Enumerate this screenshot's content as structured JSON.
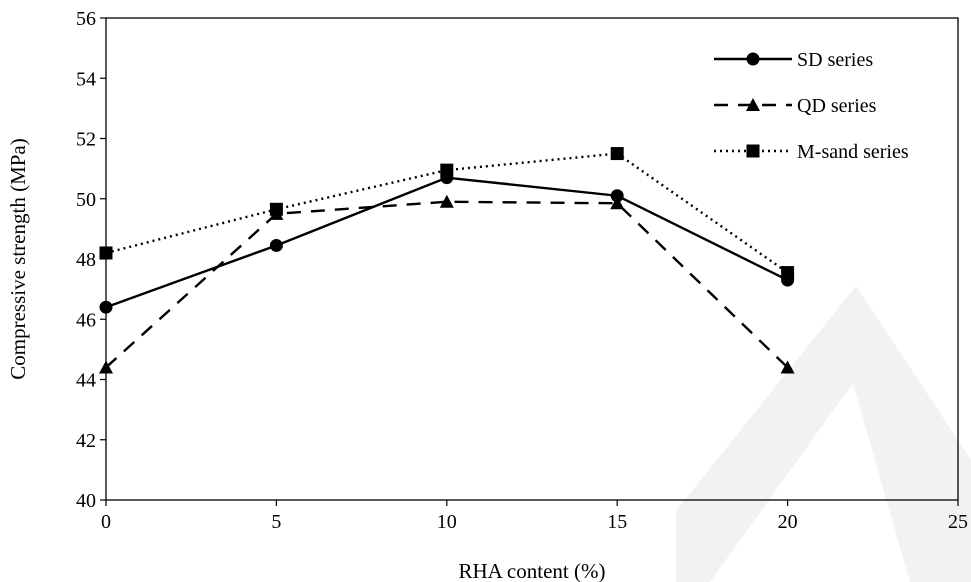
{
  "chart_data": {
    "type": "line",
    "xlabel": "RHA content (%)",
    "ylabel": "Compressive strength (MPa)",
    "xlim": [
      0,
      25
    ],
    "ylim": [
      40,
      56
    ],
    "xticks": [
      0,
      5,
      10,
      15,
      20,
      25
    ],
    "yticks": [
      40,
      42,
      44,
      46,
      48,
      50,
      52,
      54,
      56
    ],
    "grid": false,
    "legend_position": "top-right",
    "x": [
      0,
      5,
      10,
      15,
      20
    ],
    "series": [
      {
        "name": "SD series",
        "marker": "circle",
        "line_style": "solid",
        "color": "#000000",
        "values": [
          46.4,
          48.45,
          50.7,
          50.1,
          47.3
        ]
      },
      {
        "name": "QD series",
        "marker": "triangle",
        "line_style": "dashed",
        "color": "#000000",
        "values": [
          44.4,
          49.5,
          49.9,
          49.85,
          44.4
        ]
      },
      {
        "name": "M-sand series",
        "marker": "square",
        "line_style": "dotted",
        "color": "#000000",
        "values": [
          48.2,
          49.65,
          50.95,
          51.5,
          47.55
        ]
      }
    ]
  },
  "watermark_color": "#f2f2f2"
}
